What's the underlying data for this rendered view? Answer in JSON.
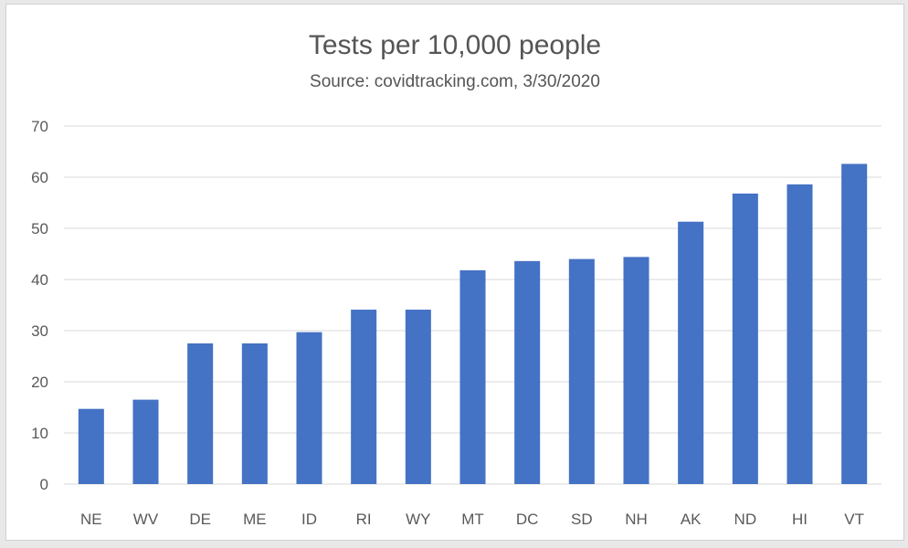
{
  "chart_data": {
    "type": "bar",
    "title": "Tests per 10,000 people",
    "subtitle": "Source: covidtracking.com, 3/30/2020",
    "categories": [
      "NE",
      "WV",
      "DE",
      "ME",
      "ID",
      "RI",
      "WY",
      "MT",
      "DC",
      "SD",
      "NH",
      "AK",
      "ND",
      "HI",
      "VT"
    ],
    "values": [
      14.7,
      16.5,
      27.5,
      27.5,
      29.7,
      34.1,
      34.1,
      41.8,
      43.6,
      44.0,
      44.4,
      51.3,
      56.8,
      58.6,
      62.6
    ],
    "xlabel": "",
    "ylabel": "",
    "ylim": [
      0,
      70
    ],
    "yticks": [
      0,
      10,
      20,
      30,
      40,
      50,
      60,
      70
    ],
    "grid": true,
    "bar_color": "#4472c4",
    "grid_color": "#d9d9d9"
  }
}
